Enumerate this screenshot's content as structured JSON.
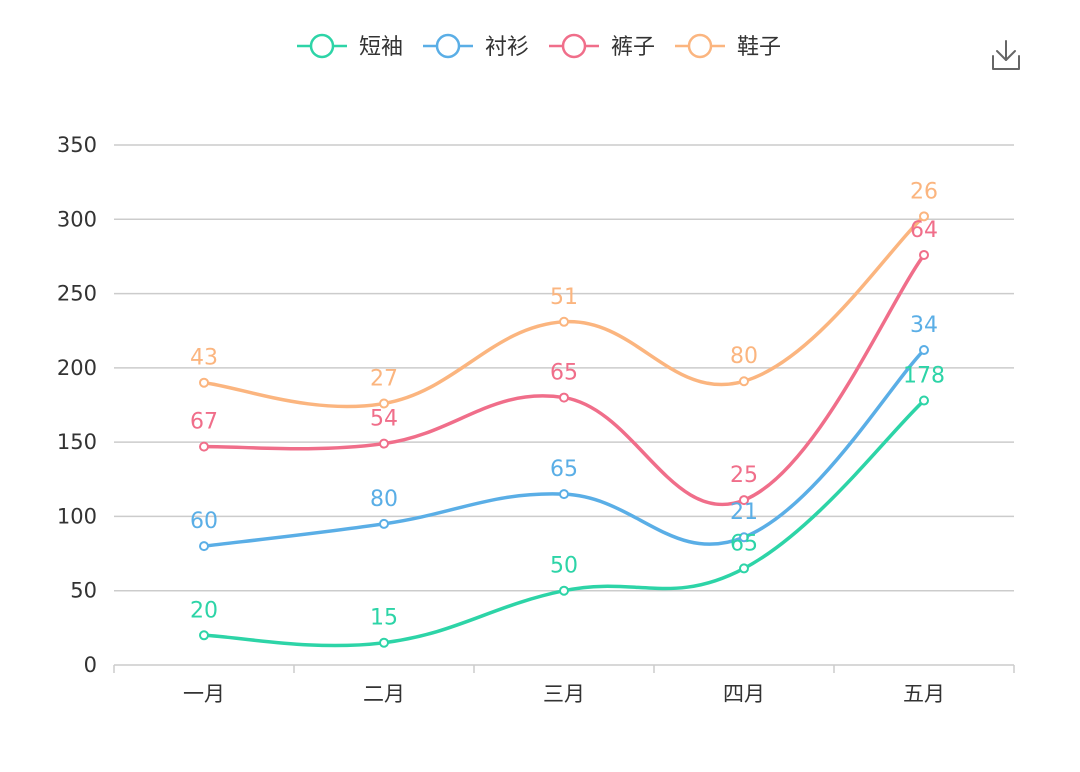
{
  "toolbar": {
    "download_icon": "download-icon"
  },
  "chart_data": {
    "type": "line",
    "smooth": true,
    "title": "",
    "xlabel": "",
    "ylabel": "",
    "stacked": true,
    "categories": [
      "一月",
      "二月",
      "三月",
      "四月",
      "五月"
    ],
    "ylim": [
      0,
      350
    ],
    "yticks": [
      0,
      50,
      100,
      150,
      200,
      250,
      300,
      350
    ],
    "grid": true,
    "legend_position": "top-center",
    "series": [
      {
        "name": "短袖",
        "color": "#2dd4a7",
        "values": [
          20,
          15,
          50,
          65,
          178
        ]
      },
      {
        "name": "衬衫",
        "color": "#5aaee6",
        "values": [
          60,
          80,
          65,
          21,
          34
        ]
      },
      {
        "name": "裤子",
        "color": "#f06e8a",
        "values": [
          67,
          54,
          65,
          25,
          64
        ]
      },
      {
        "name": "鞋子",
        "color": "#fbb57f",
        "values": [
          43,
          27,
          51,
          80,
          26
        ]
      }
    ]
  }
}
